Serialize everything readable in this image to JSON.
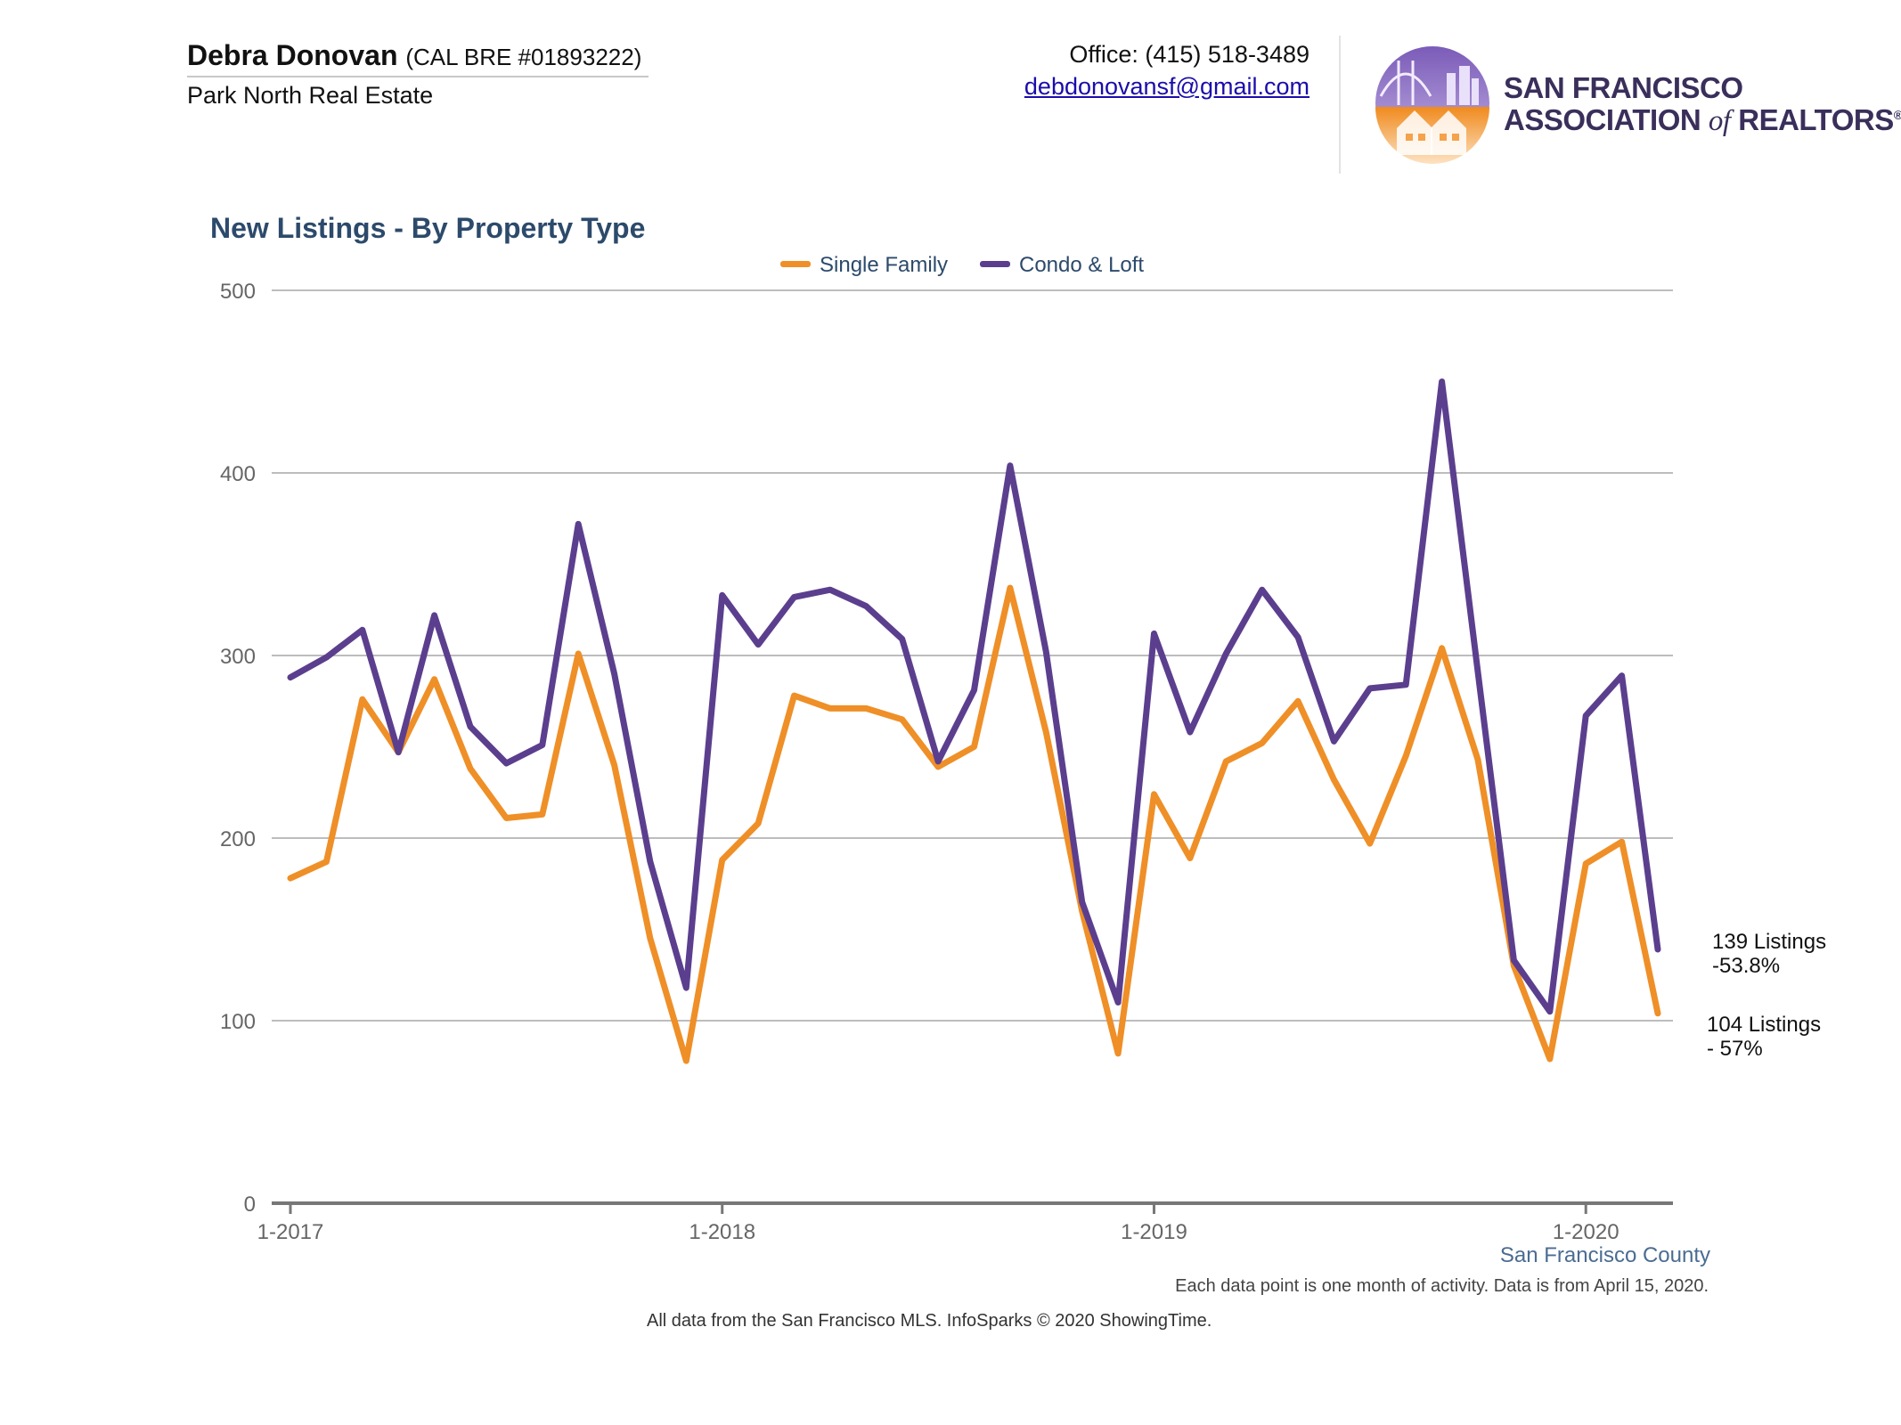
{
  "header": {
    "agent_name": "Debra Donovan",
    "agent_license": "(CAL BRE #01893222)",
    "company": "Park North Real Estate",
    "office_phone": "Office: (415) 518-3489",
    "email": "debdonovansf@gmail.com",
    "logo_line1": "SAN FRANCISCO",
    "logo_line2_a": "ASSOCIATION ",
    "logo_line2_of": "of",
    "logo_line2_b": " REALTORS",
    "logo_reg": "®"
  },
  "chart_data": {
    "type": "line",
    "title": "New Listings - By Property Type",
    "xlabel": "",
    "ylabel": "",
    "ylim": [
      0,
      500
    ],
    "yticks": [
      0,
      100,
      200,
      300,
      400,
      500
    ],
    "xticks": [
      {
        "label": "1-2017",
        "index": 0
      },
      {
        "label": "1-2018",
        "index": 12
      },
      {
        "label": "1-2019",
        "index": 24
      },
      {
        "label": "1-2020",
        "index": 36
      }
    ],
    "grid": true,
    "legend": "top-center",
    "colors": {
      "single_family": "#ef8f27",
      "condo_loft": "#5b3f8e"
    },
    "x": [
      "1-2017",
      "2-2017",
      "3-2017",
      "4-2017",
      "5-2017",
      "6-2017",
      "7-2017",
      "8-2017",
      "9-2017",
      "10-2017",
      "11-2017",
      "12-2017",
      "1-2018",
      "2-2018",
      "3-2018",
      "4-2018",
      "5-2018",
      "6-2018",
      "7-2018",
      "8-2018",
      "9-2018",
      "10-2018",
      "11-2018",
      "12-2018",
      "1-2019",
      "2-2019",
      "3-2019",
      "4-2019",
      "5-2019",
      "6-2019",
      "7-2019",
      "8-2019",
      "9-2019",
      "10-2019",
      "11-2019",
      "12-2019",
      "1-2020",
      "2-2020",
      "3-2020"
    ],
    "series": [
      {
        "name": "Single Family",
        "color": "#ef8f27",
        "values": [
          178,
          187,
          276,
          247,
          287,
          238,
          211,
          213,
          301,
          240,
          145,
          78,
          188,
          208,
          278,
          271,
          271,
          265,
          239,
          250,
          337,
          258,
          160,
          82,
          224,
          189,
          242,
          252,
          275,
          232,
          197,
          245,
          304,
          243,
          130,
          79,
          186,
          198,
          104
        ]
      },
      {
        "name": "Condo & Loft",
        "color": "#5b3f8e",
        "values": [
          288,
          299,
          314,
          247,
          322,
          261,
          241,
          251,
          372,
          290,
          187,
          118,
          333,
          306,
          332,
          336,
          327,
          309,
          242,
          281,
          404,
          302,
          165,
          110,
          312,
          258,
          301,
          336,
          310,
          253,
          282,
          284,
          450,
          291,
          133,
          105,
          267,
          289,
          139
        ]
      }
    ],
    "annotations": {
      "condo_count": "139 Listings",
      "condo_change": "-53.8%",
      "sf_count": "104 Listings",
      "sf_change": "- 57%"
    }
  },
  "footer": {
    "county": "San Francisco County",
    "note": "Each data point is one month of activity. Data is from April 15, 2020.",
    "source": "All data from the San Francisco MLS. InfoSparks © 2020 ShowingTime."
  }
}
